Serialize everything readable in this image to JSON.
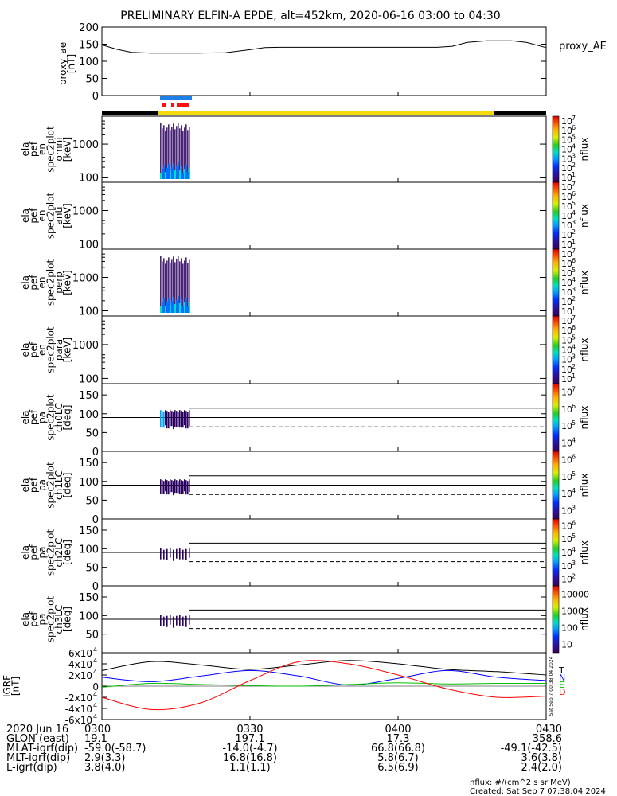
{
  "title": "PRELIMINARY ELFIN-A EPDE, alt=452km, 2020-06-16 03:00 to 04:30",
  "chart_data": [
    {
      "type": "line",
      "panel": "proxy_ae",
      "ylabel_lines": [
        "proxy_ae",
        "[nT]"
      ],
      "legend": "proxy_AE",
      "ylim": [
        0,
        200
      ],
      "yticks": [
        "0",
        "50",
        "100",
        "150",
        "200"
      ],
      "x_minutes": [
        0,
        3,
        6,
        10,
        15,
        20,
        25,
        30,
        33,
        36,
        40,
        45,
        50,
        55,
        60,
        65,
        68,
        71,
        74,
        78,
        80,
        83,
        86,
        90
      ],
      "values": [
        148,
        135,
        126,
        124,
        124,
        124,
        125,
        134,
        140,
        141,
        141,
        141,
        141,
        141,
        141,
        141,
        141,
        144,
        155,
        160,
        160,
        160,
        155,
        140
      ]
    },
    {
      "type": "heatmap",
      "panel": "omni",
      "ylabel_lines": [
        "ela",
        "pef",
        "en",
        "spec2plot",
        "omni",
        "[keV]"
      ],
      "yticks": [
        "100",
        "1000"
      ],
      "colorbar_label": "nflux",
      "colorbar_ticks": [
        "10",
        "10",
        "10",
        "10",
        "10",
        "10",
        "10"
      ],
      "colorbar_exps": [
        "1",
        "2",
        "3",
        "4",
        "5",
        "6",
        "7"
      ]
    },
    {
      "type": "heatmap",
      "panel": "anti",
      "ylabel_lines": [
        "ela",
        "pef",
        "en",
        "spec2plot",
        "anti",
        "[keV]"
      ],
      "yticks": [
        "100",
        "1000"
      ],
      "colorbar_label": "nflux",
      "colorbar_ticks": [
        "10",
        "10",
        "10",
        "10",
        "10",
        "10",
        "10"
      ],
      "colorbar_exps": [
        "1",
        "2",
        "3",
        "4",
        "5",
        "6",
        "7"
      ]
    },
    {
      "type": "heatmap",
      "panel": "perp",
      "ylabel_lines": [
        "ela",
        "pef",
        "en",
        "spec2plot",
        "perp",
        "[keV]"
      ],
      "yticks": [
        "100",
        "1000"
      ],
      "colorbar_label": "nflux",
      "colorbar_ticks": [
        "10",
        "10",
        "10",
        "10",
        "10",
        "10",
        "10"
      ],
      "colorbar_exps": [
        "1",
        "2",
        "3",
        "4",
        "5",
        "6",
        "7"
      ]
    },
    {
      "type": "heatmap",
      "panel": "para",
      "ylabel_lines": [
        "ela",
        "pef",
        "en",
        "spec2plot",
        "para",
        "[keV]"
      ],
      "yticks": [
        "100",
        "1000"
      ],
      "colorbar_label": "nflux",
      "colorbar_ticks": [
        "10",
        "10",
        "10",
        "10",
        "10",
        "10",
        "10"
      ],
      "colorbar_exps": [
        "1",
        "2",
        "3",
        "4",
        "5",
        "6",
        "7"
      ]
    },
    {
      "type": "heatmap",
      "panel": "ch0LC",
      "ylabel_lines": [
        "ela",
        "pef",
        "pa",
        "spec2plot",
        "ch0LC",
        "[deg]"
      ],
      "yticks": [
        "0",
        "50",
        "100",
        "150"
      ],
      "colorbar_label": "nflux",
      "colorbar_ticks": [
        "10",
        "10",
        "10",
        "10"
      ],
      "colorbar_exps": [
        "4",
        "5",
        "6",
        "7"
      ]
    },
    {
      "type": "heatmap",
      "panel": "ch1LC",
      "ylabel_lines": [
        "ela",
        "pef",
        "pa",
        "spec2plot",
        "ch1LC",
        "[deg]"
      ],
      "yticks": [
        "0",
        "50",
        "100",
        "150"
      ],
      "colorbar_label": "nflux",
      "colorbar_ticks": [
        "10",
        "10",
        "10",
        "10"
      ],
      "colorbar_exps": [
        "3",
        "4",
        "5",
        "6"
      ]
    },
    {
      "type": "heatmap",
      "panel": "ch2LC",
      "ylabel_lines": [
        "ela",
        "pef",
        "pa",
        "spec2plot",
        "ch2LC",
        "[deg]"
      ],
      "yticks": [
        "0",
        "50",
        "100",
        "150"
      ],
      "colorbar_label": "nflux",
      "colorbar_ticks": [
        "10",
        "10",
        "10",
        "10",
        "10"
      ],
      "colorbar_exps": [
        "2",
        "3",
        "4",
        "5",
        "6"
      ]
    },
    {
      "type": "heatmap",
      "panel": "ch3LC",
      "ylabel_lines": [
        "ela",
        "pef",
        "pa",
        "spec2plot",
        "ch3LC",
        "[deg]"
      ],
      "yticks": [
        "50",
        "100",
        "150"
      ],
      "colorbar_label": "nflux",
      "colorbar_ticks": [
        "10",
        "100",
        "1000",
        "10000"
      ],
      "colorbar_exps": [
        "",
        "",
        "",
        ""
      ]
    },
    {
      "type": "line",
      "panel": "igrf",
      "ylabel_lines": [
        "IGRF",
        "[nT]"
      ],
      "yticks": [
        "-6x10",
        "-4x10",
        "-2x10",
        "0",
        "2x10",
        "4x10",
        "6x10"
      ],
      "ytick_exp": "4",
      "ylim": [
        -60000,
        60000
      ],
      "legend": [
        "T",
        "N",
        "E",
        "D"
      ],
      "side_text": "Sat Sep 7 00:38:04 2024",
      "x_minutes": [
        0,
        10,
        20,
        30,
        40,
        50,
        60,
        70,
        80,
        90
      ],
      "series": [
        {
          "name": "T",
          "color": "#000000",
          "values": [
            28000,
            44000,
            38000,
            30000,
            38000,
            46000,
            40000,
            30000,
            26000,
            20000
          ]
        },
        {
          "name": "N",
          "color": "#0000ff",
          "values": [
            16000,
            8000,
            18000,
            28000,
            18000,
            2000,
            14000,
            28000,
            16000,
            10000
          ]
        },
        {
          "name": "E",
          "color": "#00c000",
          "values": [
            -2000,
            5000,
            3000,
            1000,
            0,
            3000,
            6000,
            4000,
            5000,
            5000
          ]
        },
        {
          "name": "D",
          "color": "#ff0000",
          "values": [
            -20000,
            -42000,
            -30000,
            10000,
            44000,
            40000,
            20000,
            -5000,
            -20000,
            -18000
          ]
        }
      ]
    }
  ],
  "xaxis": {
    "ticks": [
      "0300",
      "0330",
      "0400",
      "0430"
    ],
    "rows": [
      {
        "label": "2020 Jun 16",
        "values": [
          "0300",
          "0330",
          "0400",
          "0430"
        ]
      },
      {
        "label": "GLON (east)",
        "values": [
          "19.1",
          "197.1",
          "17.3",
          "358.6"
        ]
      },
      {
        "label": "MLAT-igrf(dip)",
        "values": [
          "-59.0(-58.7)",
          "-14.0(-4.7)",
          "66.8(66.8)",
          "-49.1(-42.5)"
        ]
      },
      {
        "label": "MLT-igrf(dip)",
        "values": [
          "2.9(3.3)",
          "16.8(16.8)",
          "5.8(6.7)",
          "3.6(3.8)"
        ]
      },
      {
        "label": "L-igrf(dip)",
        "values": [
          "3.8(4.0)",
          "1.1(1.1)",
          "6.5(6.9)",
          "2.4(2.0)"
        ]
      }
    ]
  },
  "footer": {
    "units": "nflux: #/(cm^2 s sr MeV)",
    "created": "Created: Sat Sep  7 07:38:04 2024"
  },
  "colors": {
    "status_yellow": "#f5d90a",
    "status_black": "#000000",
    "indicator_blue": "#1e7fe6",
    "indicator_red": "#ff1010"
  }
}
